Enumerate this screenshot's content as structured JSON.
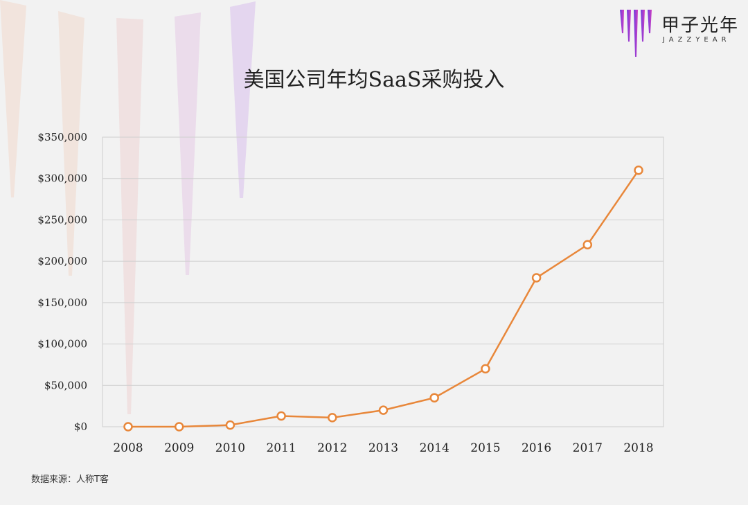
{
  "brand": {
    "name": "甲子光年",
    "subtitle": "JAZZYEAR",
    "logo_color_start": "#7b3fe0",
    "logo_color_end": "#c83cc8"
  },
  "source_note": "数据来源：人称T客",
  "chart_data": {
    "type": "line",
    "title": "美国公司年均SaaS采购投入",
    "xlabel": "",
    "ylabel": "",
    "categories": [
      "2008",
      "2009",
      "2010",
      "2011",
      "2012",
      "2013",
      "2014",
      "2015",
      "2016",
      "2017",
      "2018"
    ],
    "series": [
      {
        "values": [
          0,
          0,
          2000,
          13000,
          11000,
          20000,
          35000,
          70000,
          180000,
          220000,
          310000
        ],
        "color": "#e8873a"
      }
    ],
    "y_ticks": [
      "$0",
      "$50,000",
      "$100,000",
      "$150,000",
      "$200,000",
      "$250,000",
      "$300,000",
      "$350,000"
    ],
    "ylim": [
      0,
      350000
    ],
    "grid": true,
    "legend": "none"
  }
}
